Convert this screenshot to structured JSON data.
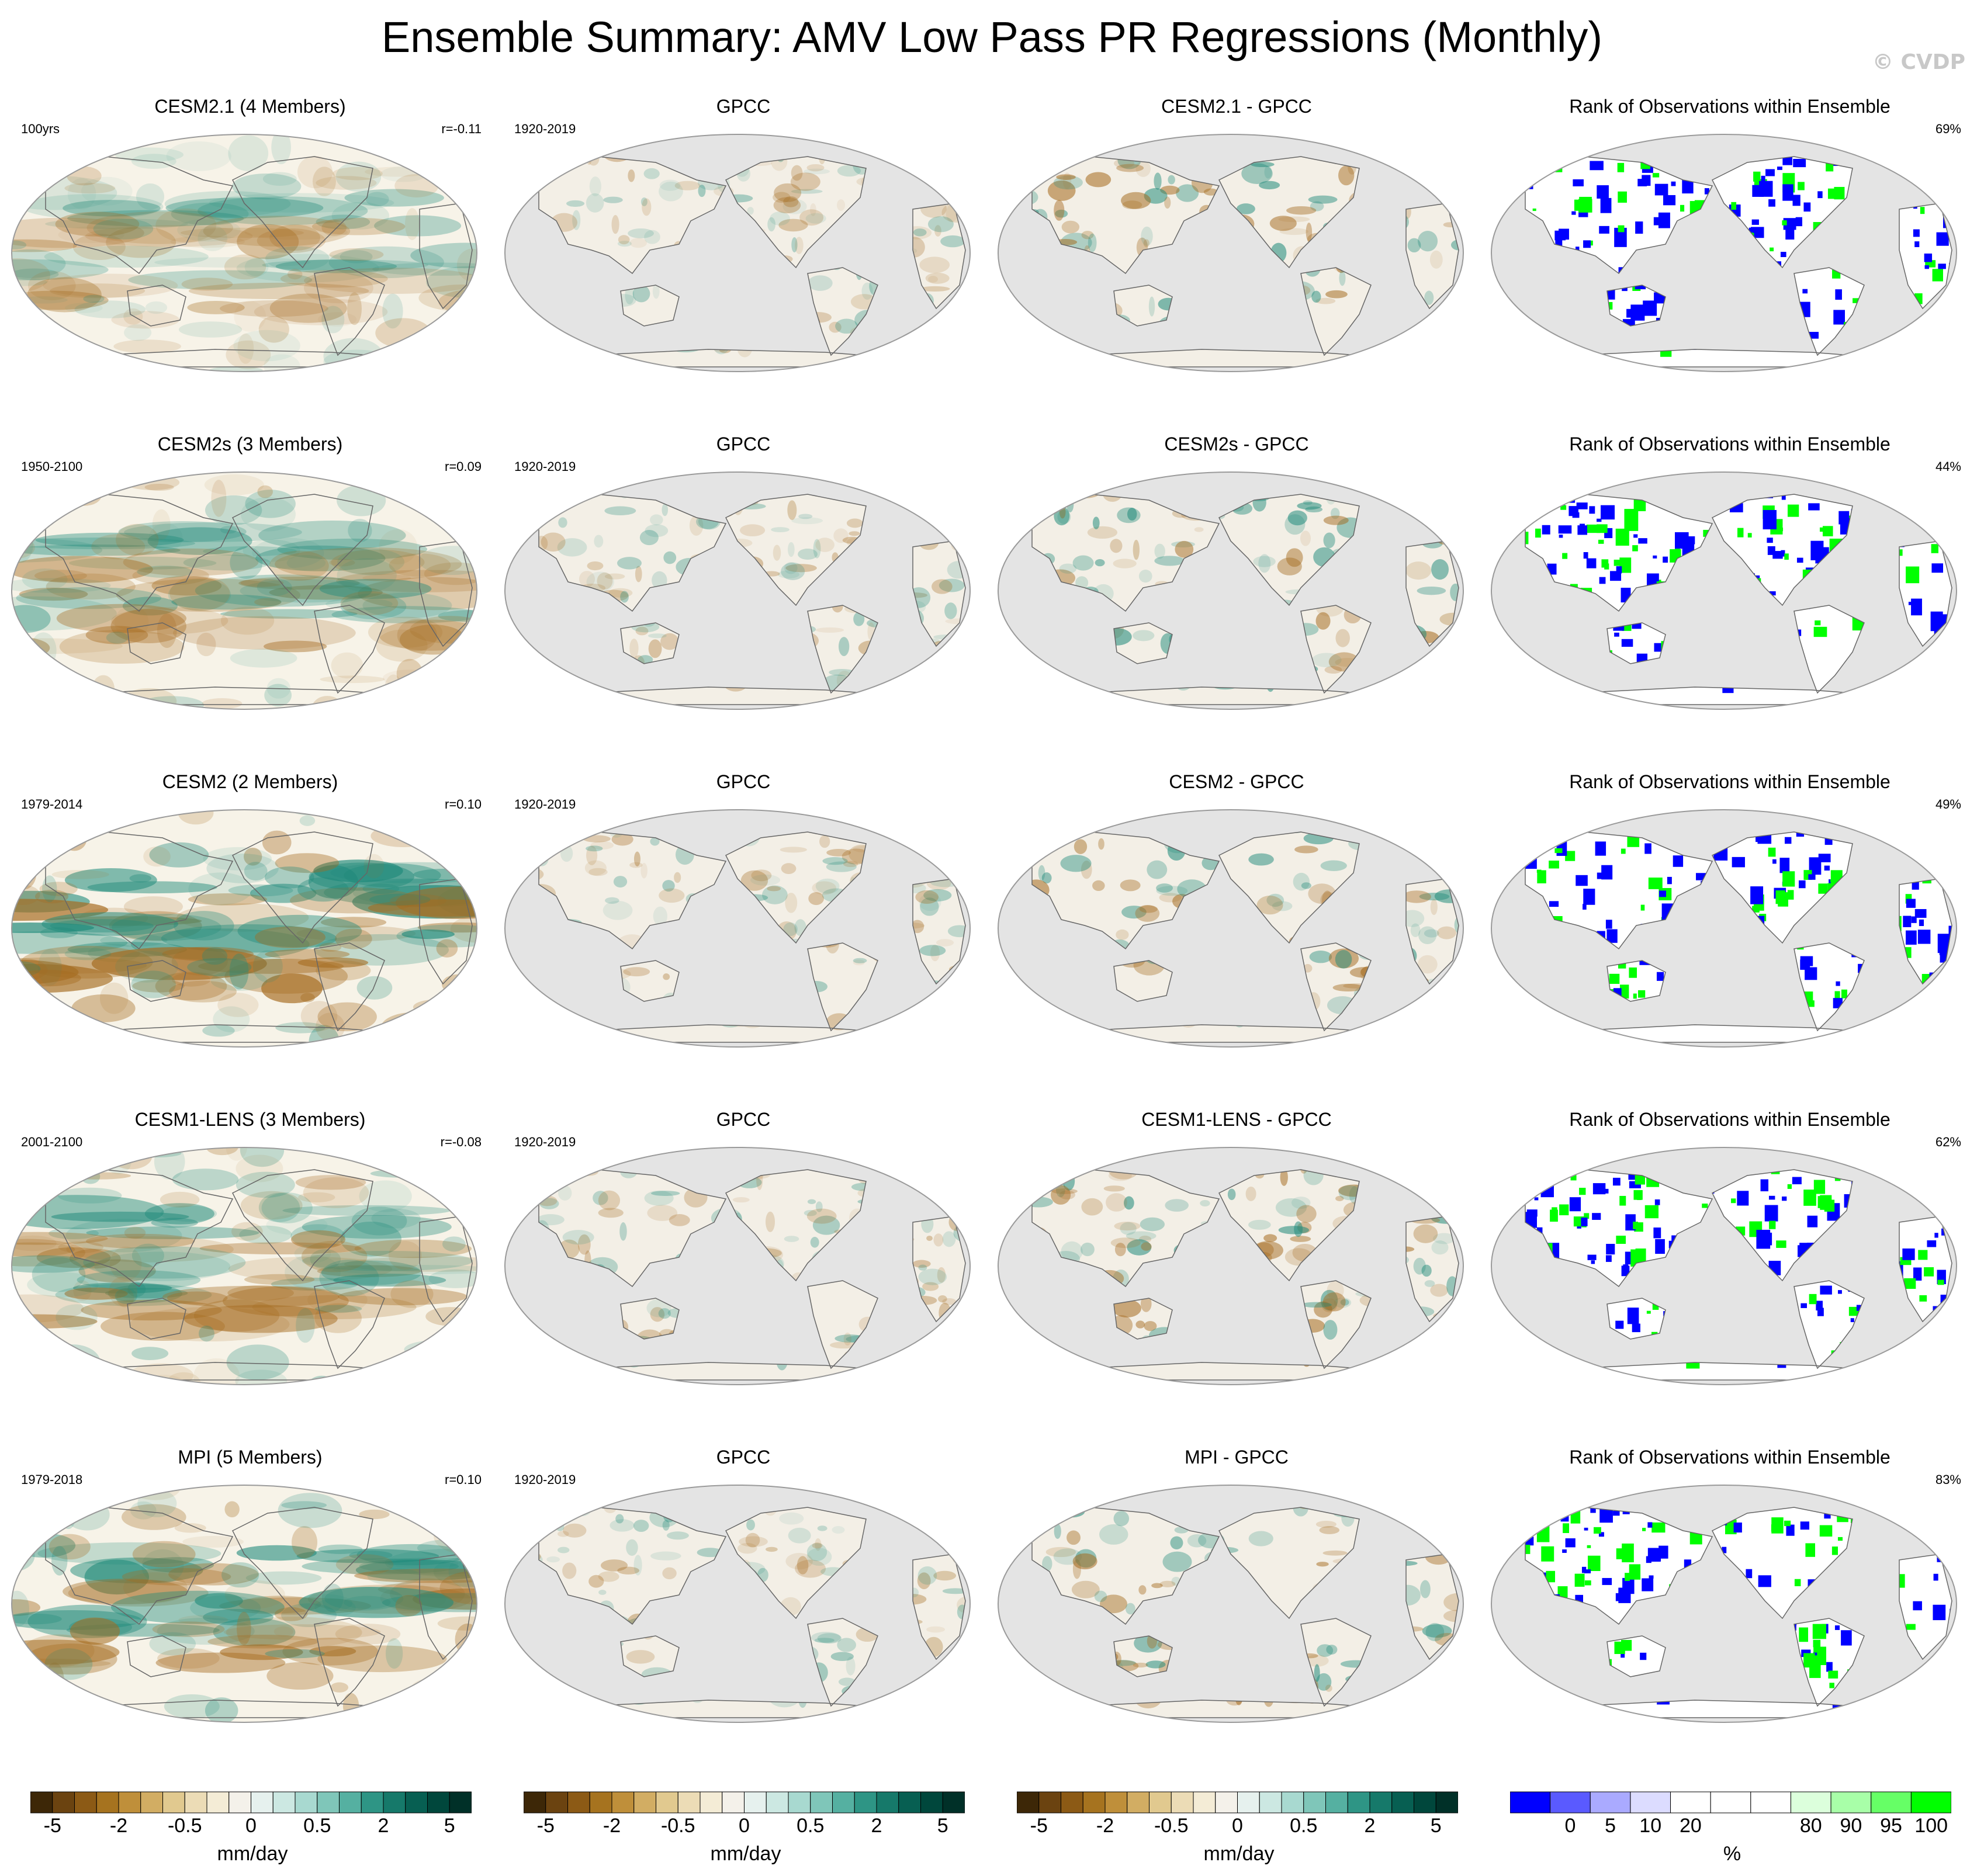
{
  "title": "Ensemble Summary: AMV Low Pass PR Regressions (Monthly)",
  "watermark": "© CVDP",
  "colors": {
    "land_mask": "#e4e4e4",
    "ocean_neutral": "#f7f3e8",
    "dry": "#a56b1f",
    "wet": "#1f8a7a",
    "rank_low": "#0000ff",
    "rank_high": "#00ff00"
  },
  "rows": [
    {
      "model": {
        "title": "CESM2.1 (4 Members)",
        "period": "100yrs",
        "corr": "r=-0.11",
        "intensity": 0.55
      },
      "obs": {
        "title": "GPCC",
        "period": "1920-2019"
      },
      "diff": {
        "title": "CESM2.1 - GPCC"
      },
      "rank": {
        "title": "Rank of Observations within Ensemble",
        "percent": "69%"
      }
    },
    {
      "model": {
        "title": "CESM2s (3 Members)",
        "period": "1950-2100",
        "corr": "r=0.09",
        "intensity": 0.65
      },
      "obs": {
        "title": "GPCC",
        "period": "1920-2019"
      },
      "diff": {
        "title": "CESM2s - GPCC"
      },
      "rank": {
        "title": "Rank of Observations within Ensemble",
        "percent": "44%"
      }
    },
    {
      "model": {
        "title": "CESM2 (2 Members)",
        "period": "1979-2014",
        "corr": "r=0.10",
        "intensity": 1.0
      },
      "obs": {
        "title": "GPCC",
        "period": "1920-2019"
      },
      "diff": {
        "title": "CESM2 - GPCC"
      },
      "rank": {
        "title": "Rank of Observations within Ensemble",
        "percent": "49%"
      }
    },
    {
      "model": {
        "title": "CESM1-LENS (3 Members)",
        "period": "2001-2100",
        "corr": "r=-0.08",
        "intensity": 0.75
      },
      "obs": {
        "title": "GPCC",
        "period": "1920-2019"
      },
      "diff": {
        "title": "CESM1-LENS - GPCC"
      },
      "rank": {
        "title": "Rank of Observations within Ensemble",
        "percent": "62%"
      }
    },
    {
      "model": {
        "title": "MPI (5 Members)",
        "period": "1979-2018",
        "corr": "r=0.10",
        "intensity": 0.85
      },
      "obs": {
        "title": "GPCC",
        "period": "1920-2019"
      },
      "diff": {
        "title": "MPI - GPCC"
      },
      "rank": {
        "title": "Rank of Observations within Ensemble",
        "percent": "83%"
      }
    }
  ],
  "colorbars": [
    {
      "unit": "mm/day",
      "ticks": [
        "-5",
        "-2",
        "-0.5",
        "0",
        "0.5",
        "2",
        "5"
      ],
      "colors": [
        "#3d2707",
        "#6b4310",
        "#8c5a15",
        "#a6731f",
        "#bf8f3a",
        "#d2ad63",
        "#e1c98f",
        "#ecdcb6",
        "#f4ecd6",
        "#f4f1ea",
        "#e6f1ee",
        "#cce8e2",
        "#a8d9d0",
        "#7fc6b9",
        "#55b0a1",
        "#2e9585",
        "#16796a",
        "#075f52",
        "#00473c",
        "#003028"
      ]
    },
    {
      "unit": "mm/day",
      "ticks": [
        "-5",
        "-2",
        "-0.5",
        "0",
        "0.5",
        "2",
        "5"
      ],
      "colors": [
        "#3d2707",
        "#6b4310",
        "#8c5a15",
        "#a6731f",
        "#bf8f3a",
        "#d2ad63",
        "#e1c98f",
        "#ecdcb6",
        "#f4ecd6",
        "#f4f1ea",
        "#e6f1ee",
        "#cce8e2",
        "#a8d9d0",
        "#7fc6b9",
        "#55b0a1",
        "#2e9585",
        "#16796a",
        "#075f52",
        "#00473c",
        "#003028"
      ]
    },
    {
      "unit": "mm/day",
      "ticks": [
        "-5",
        "-2",
        "-0.5",
        "0",
        "0.5",
        "2",
        "5"
      ],
      "colors": [
        "#3d2707",
        "#6b4310",
        "#8c5a15",
        "#a6731f",
        "#bf8f3a",
        "#d2ad63",
        "#e1c98f",
        "#ecdcb6",
        "#f4ecd6",
        "#f4f1ea",
        "#e6f1ee",
        "#cce8e2",
        "#a8d9d0",
        "#7fc6b9",
        "#55b0a1",
        "#2e9585",
        "#16796a",
        "#075f52",
        "#00473c",
        "#003028"
      ]
    },
    {
      "unit": "%",
      "ticks": [
        "0",
        "5",
        "10",
        "20",
        "80",
        "90",
        "95",
        "100"
      ],
      "colors": [
        "#0000ff",
        "#5a5aff",
        "#aaaaff",
        "#dcdcff",
        "#ffffff",
        "#ffffff",
        "#ffffff",
        "#dcffdc",
        "#a8ffa8",
        "#66ff66",
        "#00ff00"
      ]
    }
  ]
}
